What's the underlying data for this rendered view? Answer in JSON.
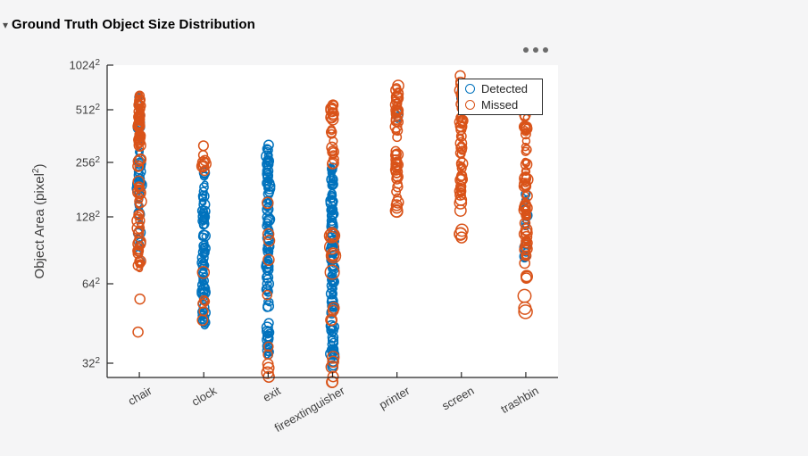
{
  "section": {
    "title": "Ground Truth Object Size Distribution",
    "collapse_icon": "▾"
  },
  "figure": {
    "ylabel": {
      "pre": "Object Area  (pixel",
      "sup": "2",
      "post": ")"
    },
    "menu_icon": "ellipsis-icon"
  },
  "colors": {
    "background": "#F5F5F6",
    "plot_background": "#FFFFFF",
    "axis": "#262626",
    "text": "#3F3F3F",
    "detected": "#0072BD",
    "missed": "#D95319"
  },
  "chart_data": {
    "type": "scatter",
    "title": "Ground Truth Object Size Distribution",
    "ylabel": "Object Area (pixel²)",
    "marker": "open-circle",
    "legend_position": "top-right-inside",
    "legend": [
      {
        "label": "Detected",
        "color": "#0072BD"
      },
      {
        "label": "Missed",
        "color": "#D95319"
      }
    ],
    "x_categories": [
      "chair",
      "clock",
      "exit",
      "fireextinguisher",
      "printer",
      "screen",
      "trashbin"
    ],
    "y_ticks": [
      {
        "base": "1024",
        "sup": "2",
        "side": 1024
      },
      {
        "base": "512",
        "sup": "2",
        "side": 512
      },
      {
        "base": "256",
        "sup": "2",
        "side": 256
      },
      {
        "base": "128",
        "sup": "2",
        "side": 128
      },
      {
        "base": "64",
        "sup": "2",
        "side": 64
      },
      {
        "base": "32",
        "sup": "2",
        "side": 32
      }
    ],
    "y_axis_note": "object side length in pixels; area = side^2; axis limits approx 28^2 to 1024^2",
    "distributions": [
      {
        "category": "chair",
        "detected": [
          {
            "side_max": 640,
            "side_min": 76,
            "count": 45,
            "r": [
              3,
              6.5
            ]
          },
          {
            "side_max": 200,
            "side_min": 180,
            "count": 8,
            "r": [
              5,
              7
            ]
          }
        ],
        "missed": [
          {
            "side_max": 660,
            "side_min": 330,
            "count": 55,
            "r": [
              3,
              6
            ]
          },
          {
            "side_max": 330,
            "side_min": 73,
            "count": 48,
            "r": [
              3,
              7
            ]
          },
          {
            "side_max": 56,
            "side_min": 56,
            "count": 1,
            "r": [
              5.5,
              5.5
            ]
          },
          {
            "side_max": 42,
            "side_min": 42,
            "count": 1,
            "r": [
              5.5,
              5.5
            ]
          }
        ]
      },
      {
        "category": "clock",
        "detected": [
          {
            "side_max": 235,
            "side_min": 44,
            "count": 90,
            "r": [
              3,
              6
            ]
          }
        ],
        "missed": [
          {
            "side_max": 365,
            "side_min": 230,
            "count": 8,
            "r": [
              4,
              6.5
            ]
          },
          {
            "side_max": 72,
            "side_min": 72,
            "count": 1,
            "r": [
              6.5,
              6.5
            ]
          },
          {
            "side_max": 56,
            "side_min": 44,
            "count": 5,
            "r": [
              4.5,
              6
            ]
          }
        ]
      },
      {
        "category": "exit",
        "detected": [
          {
            "side_max": 335,
            "side_min": 34,
            "count": 110,
            "r": [
              3,
              6
            ]
          }
        ],
        "missed": [
          {
            "side_max": 153,
            "side_min": 153,
            "count": 1,
            "r": [
              6,
              6
            ]
          },
          {
            "side_max": 107,
            "side_min": 107,
            "count": 1,
            "r": [
              6,
              6
            ]
          },
          {
            "side_max": 100,
            "side_min": 100,
            "count": 1,
            "r": [
              6,
              6
            ]
          },
          {
            "side_max": 82,
            "side_min": 82,
            "count": 1,
            "r": [
              6,
              6
            ]
          },
          {
            "side_max": 58,
            "side_min": 58,
            "count": 1,
            "r": [
              5,
              5
            ]
          },
          {
            "side_max": 37,
            "side_min": 37,
            "count": 1,
            "r": [
              5,
              5
            ]
          },
          {
            "side_max": 34.5,
            "side_min": 34.5,
            "count": 1,
            "r": [
              5,
              5
            ]
          },
          {
            "side_max": 33,
            "side_min": 27.5,
            "count": 4,
            "r": [
              5,
              6.5
            ]
          }
        ]
      },
      {
        "category": "fireextinguisher",
        "detected": [
          {
            "side_max": 240,
            "side_min": 31,
            "count": 125,
            "r": [
              3,
              6
            ]
          },
          {
            "side_max": 36,
            "side_min": 34,
            "count": 4,
            "r": [
              5,
              6.5
            ]
          }
        ],
        "missed": [
          {
            "side_max": 555,
            "side_min": 230,
            "count": 24,
            "r": [
              4,
              6.5
            ]
          },
          {
            "side_max": 125,
            "side_min": 70,
            "count": 9,
            "r": [
              6,
              8
            ]
          },
          {
            "side_max": 54,
            "side_min": 43,
            "count": 4,
            "r": [
              5,
              6.5
            ]
          },
          {
            "side_max": 36,
            "side_min": 27,
            "count": 6,
            "r": [
              5,
              6.5
            ]
          }
        ]
      },
      {
        "category": "printer",
        "detected": [
          {
            "side_max": 512,
            "side_min": 437,
            "count": 4,
            "r": [
              3.5,
              5
            ]
          }
        ],
        "missed": [
          {
            "side_max": 815,
            "side_min": 350,
            "count": 26,
            "r": [
              4,
              6.5
            ]
          },
          {
            "side_max": 300,
            "side_min": 160,
            "count": 22,
            "r": [
              4,
              6.5
            ]
          },
          {
            "side_max": 160,
            "side_min": 128,
            "count": 5,
            "r": [
              5.5,
              7
            ]
          }
        ]
      },
      {
        "category": "screen",
        "detected": [
          {
            "side_max": 700,
            "side_min": 590,
            "count": 5,
            "r": [
              3.5,
              5
            ]
          }
        ],
        "missed": [
          {
            "side_max": 870,
            "side_min": 165,
            "count": 58,
            "r": [
              3,
              6.5
            ]
          },
          {
            "side_max": 160,
            "side_min": 103,
            "count": 7,
            "r": [
              5.5,
              7
            ]
          }
        ]
      },
      {
        "category": "trashbin",
        "detected": [
          {
            "side_max": 195,
            "side_min": 80,
            "count": 13,
            "r": [
              3.5,
              6
            ]
          }
        ],
        "missed": [
          {
            "side_max": 480,
            "side_min": 81,
            "count": 70,
            "r": [
              3,
              6.5
            ]
          },
          {
            "side_max": 80,
            "side_min": 66,
            "count": 4,
            "r": [
              5.5,
              6.5
            ]
          },
          {
            "side_max": 60,
            "side_min": 49,
            "count": 3,
            "r": [
              6.5,
              7.5
            ]
          }
        ]
      }
    ]
  }
}
